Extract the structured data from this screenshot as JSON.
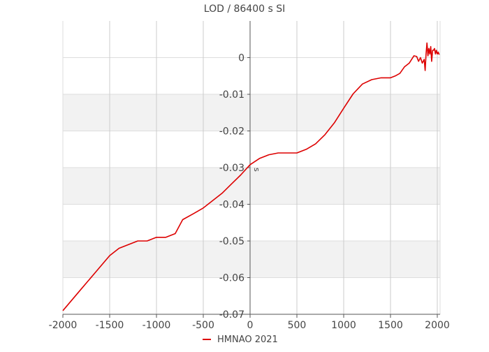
{
  "chart_data": {
    "type": "line",
    "title": "LOD / 86400 s SI",
    "xlabel": "",
    "ylabel": "s",
    "xlim": [
      -2000,
      2030
    ],
    "ylim": [
      -0.07,
      0.01
    ],
    "x_ticks": [
      -2000,
      -1500,
      -1000,
      -500,
      0,
      500,
      1000,
      1500,
      2000
    ],
    "y_ticks": [
      0,
      -0.01,
      -0.02,
      -0.03,
      -0.04,
      -0.05,
      -0.06,
      -0.07
    ],
    "y_tick_labels": [
      "0",
      "-0.01",
      "-0.02",
      "-0.03",
      "-0.04",
      "-0.05",
      "-0.06",
      "-0.07"
    ],
    "x_tick_labels": [
      "-2000",
      "-1500",
      "-1000",
      "-500",
      "0",
      "500",
      "1000",
      "1500",
      "2000"
    ],
    "grid": true,
    "banded_background": true,
    "legend": {
      "position": "bottom-center"
    },
    "series": [
      {
        "name": "HMNAO 2021",
        "color": "#dd0000",
        "x": [
          -2000,
          -1800,
          -1650,
          -1500,
          -1400,
          -1300,
          -1200,
          -1100,
          -1000,
          -900,
          -800,
          -720,
          -600,
          -500,
          -400,
          -300,
          -200,
          -100,
          0,
          100,
          200,
          300,
          400,
          500,
          600,
          700,
          800,
          900,
          1000,
          1100,
          1200,
          1300,
          1400,
          1500,
          1550,
          1600,
          1650,
          1700,
          1750,
          1780,
          1800,
          1820,
          1840,
          1860,
          1870,
          1880,
          1890,
          1900,
          1910,
          1920,
          1930,
          1940,
          1950,
          1960,
          1970,
          1980,
          1990,
          2000,
          2010,
          2020
        ],
        "y": [
          -0.069,
          -0.063,
          -0.0585,
          -0.054,
          -0.052,
          -0.051,
          -0.05,
          -0.05,
          -0.049,
          -0.049,
          -0.048,
          -0.0442,
          -0.0425,
          -0.041,
          -0.039,
          -0.037,
          -0.0345,
          -0.032,
          -0.0292,
          -0.0275,
          -0.0265,
          -0.026,
          -0.026,
          -0.026,
          -0.025,
          -0.0235,
          -0.021,
          -0.0178,
          -0.0138,
          -0.0099,
          -0.0072,
          -0.006,
          -0.0055,
          -0.0055,
          -0.005,
          -0.0043,
          -0.0025,
          -0.0015,
          0.0005,
          0.0003,
          -0.001,
          0.0,
          -0.0015,
          -0.0005,
          -0.0035,
          0.001,
          0.004,
          0.0005,
          0.0025,
          0.001,
          0.003,
          -0.001,
          0.002,
          0.002,
          0.0025,
          0.001,
          0.002,
          0.001,
          0.0015,
          0.0008
        ]
      }
    ]
  }
}
